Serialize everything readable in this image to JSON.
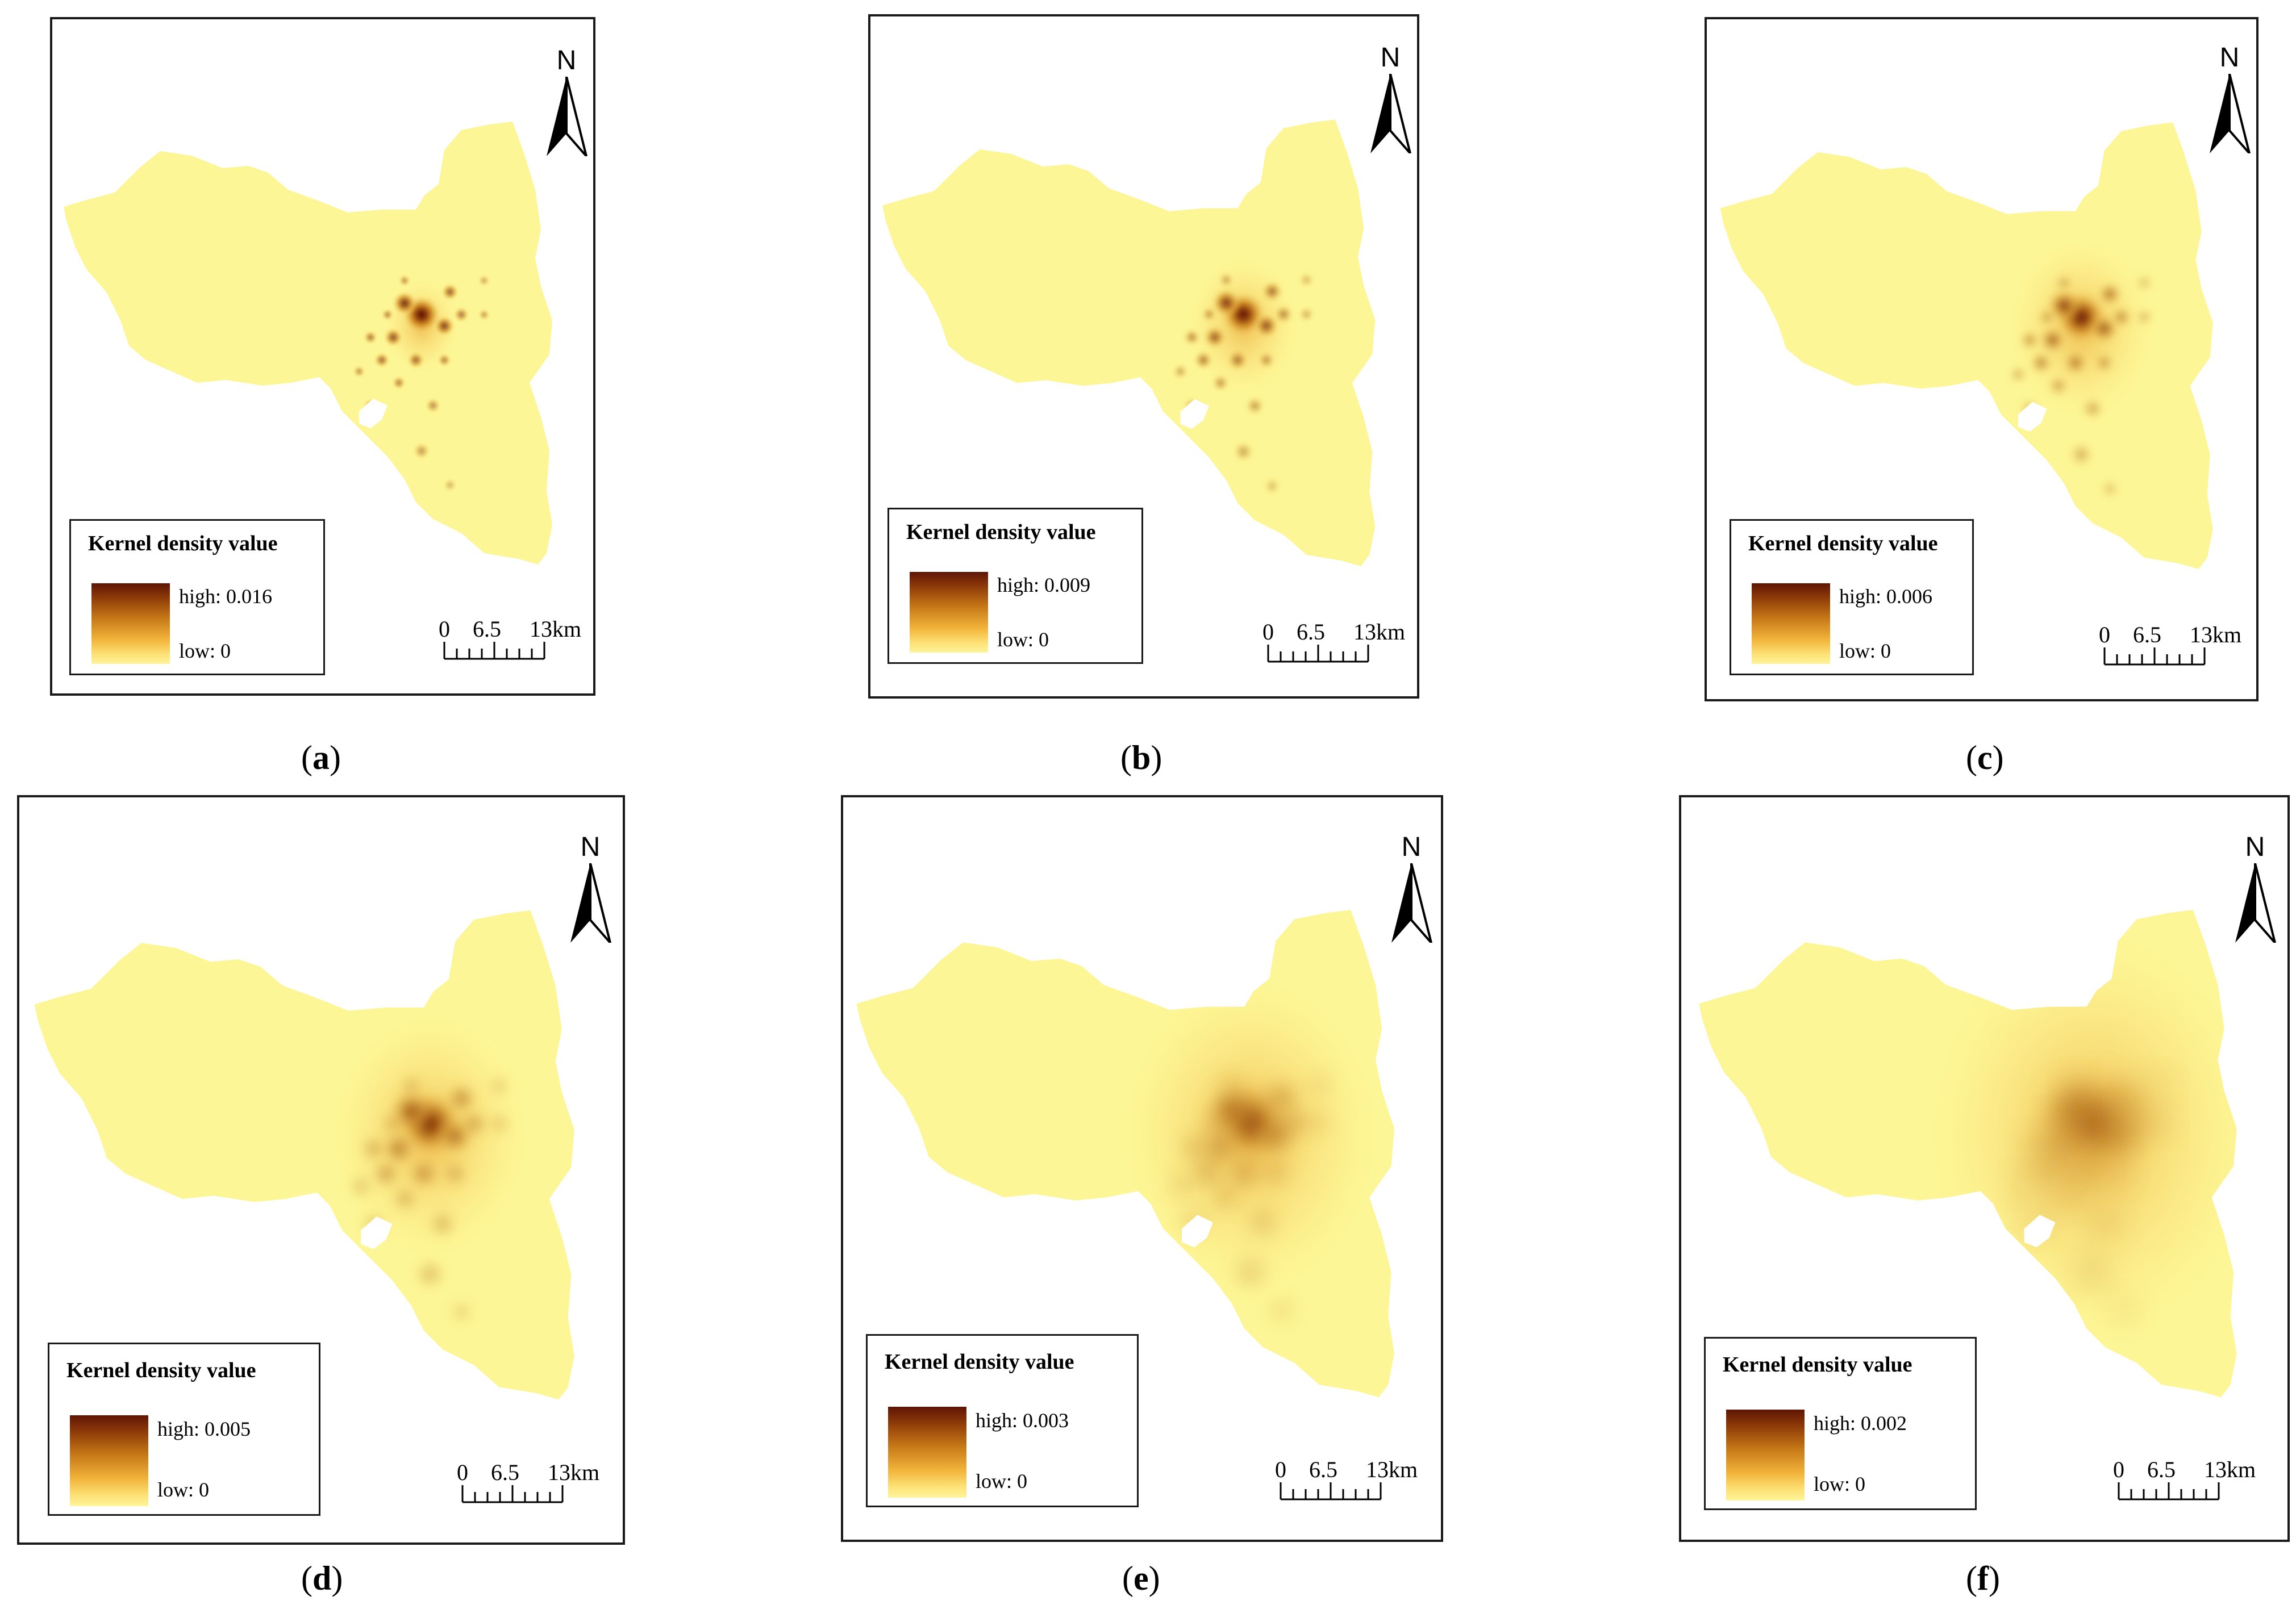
{
  "legend_title": "Kernel density value",
  "scale": {
    "zero": "0",
    "mid": "6.5",
    "end": "13km"
  },
  "north_label": "N",
  "colors": {
    "low": "#fef49a",
    "mid": "#f2b43a",
    "high": "#5e1505",
    "base": "#fdf696"
  },
  "panels": [
    {
      "label": "a",
      "high_label": "high: 0.016",
      "low_label": "low: 0",
      "high_value": 0.016,
      "smoothing": "low"
    },
    {
      "label": "b",
      "high_label": "high: 0.009",
      "low_label": "low: 0",
      "high_value": 0.009,
      "smoothing": "low-medium"
    },
    {
      "label": "c",
      "high_label": "high: 0.006",
      "low_label": "low: 0",
      "high_value": 0.006,
      "smoothing": "medium"
    },
    {
      "label": "d",
      "high_label": "high: 0.005",
      "low_label": "low: 0",
      "high_value": 0.005,
      "smoothing": "medium-high"
    },
    {
      "label": "e",
      "high_label": "high: 0.003",
      "low_label": "low: 0",
      "high_value": 0.003,
      "smoothing": "high"
    },
    {
      "label": "f",
      "high_label": "high: 0.002",
      "low_label": "low: 0",
      "high_value": 0.002,
      "smoothing": "very-high"
    }
  ]
}
